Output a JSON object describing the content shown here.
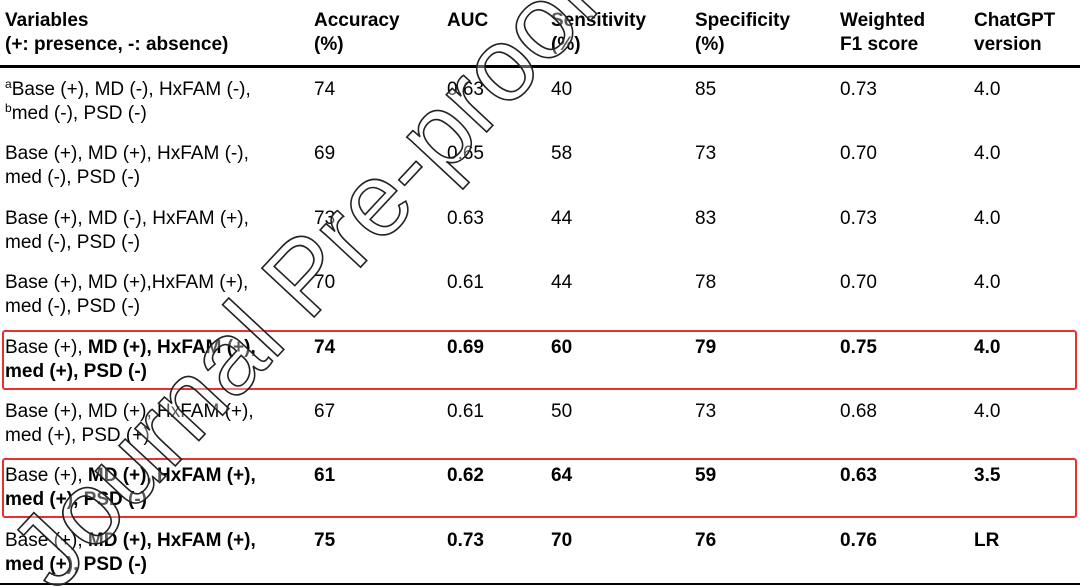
{
  "table": {
    "columns": [
      [
        "Variables",
        "(+: presence, -: absence)"
      ],
      [
        "Accuracy",
        "(%)"
      ],
      [
        "AUC"
      ],
      [
        "Sensitivity",
        "(%)"
      ],
      [
        "Specificity",
        "(%)"
      ],
      [
        "Weighted",
        "F1 score"
      ],
      [
        "ChatGPT",
        "version"
      ]
    ],
    "rows": [
      {
        "variables": [
          [
            {
              "text": "a",
              "style": "sup"
            },
            {
              "text": "Base (+), MD (-), HxFAM (-),",
              "style": "normal"
            }
          ],
          [
            {
              "text": "b",
              "style": "sup"
            },
            {
              "text": "med (-), PSD (-)",
              "style": "normal"
            }
          ]
        ],
        "values": [
          "74",
          "0.63",
          "40",
          "85",
          "0.73",
          "4.0"
        ],
        "bold": false,
        "highlighted": false
      },
      {
        "variables": [
          [
            {
              "text": "Base (+), MD (+), HxFAM (-),",
              "style": "normal"
            }
          ],
          [
            {
              "text": "med (-), PSD (-)",
              "style": "normal"
            }
          ]
        ],
        "values": [
          "69",
          "0.65",
          "58",
          "73",
          "0.70",
          "4.0"
        ],
        "bold": false,
        "highlighted": false
      },
      {
        "variables": [
          [
            {
              "text": "Base (+), MD (-), HxFAM (+),",
              "style": "normal"
            }
          ],
          [
            {
              "text": "med (-), PSD (-)",
              "style": "normal"
            }
          ]
        ],
        "values": [
          "73",
          "0.63",
          "44",
          "83",
          "0.73",
          "4.0"
        ],
        "bold": false,
        "highlighted": false
      },
      {
        "variables": [
          [
            {
              "text": "Base (+), MD (+),HxFAM (+),",
              "style": "normal"
            }
          ],
          [
            {
              "text": "med (-), PSD (-)",
              "style": "normal"
            }
          ]
        ],
        "values": [
          "70",
          "0.61",
          "44",
          "78",
          "0.70",
          "4.0"
        ],
        "bold": false,
        "highlighted": false
      },
      {
        "variables": [
          [
            {
              "text": "Base (+), ",
              "style": "normal"
            },
            {
              "text": "MD (+), HxFAM (+),",
              "style": "bold"
            }
          ],
          [
            {
              "text": "med (+), PSD (-)",
              "style": "bold"
            }
          ]
        ],
        "values": [
          "74",
          "0.69",
          "60",
          "79",
          "0.75",
          "4.0"
        ],
        "bold": true,
        "highlighted": true
      },
      {
        "variables": [
          [
            {
              "text": "Base (+), MD (+), HxFAM (+),",
              "style": "normal"
            }
          ],
          [
            {
              "text": "med (+), PSD (+)",
              "style": "normal"
            }
          ]
        ],
        "values": [
          "67",
          "0.61",
          "50",
          "73",
          "0.68",
          "4.0"
        ],
        "bold": false,
        "highlighted": false
      },
      {
        "variables": [
          [
            {
              "text": "Base (+), ",
              "style": "normal"
            },
            {
              "text": "MD (+), HxFAM (+),",
              "style": "bold"
            }
          ],
          [
            {
              "text": "med (+), PSD (-)",
              "style": "bold"
            }
          ]
        ],
        "values": [
          "61",
          "0.62",
          "64",
          "59",
          "0.63",
          "3.5"
        ],
        "bold": true,
        "highlighted": true
      },
      {
        "variables": [
          [
            {
              "text": "Base (+), ",
              "style": "normal"
            },
            {
              "text": "MD (+), HxFAM (+),",
              "style": "bold"
            }
          ],
          [
            {
              "text": "med (+), PSD (-)",
              "style": "bold"
            }
          ]
        ],
        "values": [
          "75",
          "0.73",
          "70",
          "76",
          "0.76",
          "LR"
        ],
        "bold": true,
        "highlighted": false
      }
    ]
  },
  "watermark": "Journal Pre-proof"
}
